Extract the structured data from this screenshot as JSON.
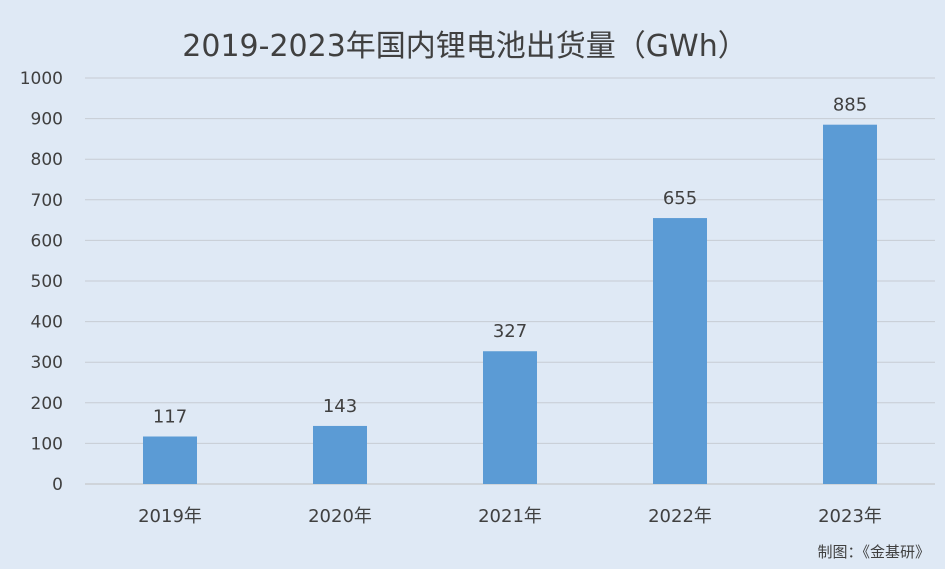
{
  "chart_data": {
    "type": "bar",
    "title": "2019-2023年国内锂电池出货量（GWh）",
    "categories": [
      "2019年",
      "2020年",
      "2021年",
      "2022年",
      "2023年"
    ],
    "values": [
      117,
      143,
      327,
      655,
      885
    ],
    "ylim": [
      0,
      1000
    ],
    "yticks": [
      0,
      100,
      200,
      300,
      400,
      500,
      600,
      700,
      800,
      900,
      1000
    ],
    "bar_color": "#5b9bd5",
    "grid": true,
    "data_labels": true
  },
  "source_note": "制图：《金基研》"
}
